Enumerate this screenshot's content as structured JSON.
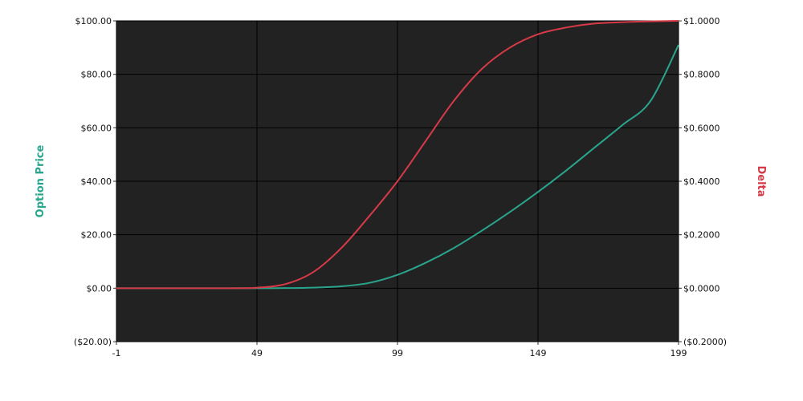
{
  "chart_data": {
    "type": "line",
    "grid": true,
    "legend": "none",
    "colors": {
      "plot_background": "#222222",
      "grid": "#000000",
      "option_price": "#2aa58d",
      "delta": "#d63a48"
    },
    "x": {
      "min": -1,
      "max": 199,
      "ticks": [
        "-1",
        "49",
        "99",
        "149",
        "199"
      ]
    },
    "y_left": {
      "label": "Option Price",
      "min": -20,
      "max": 100,
      "ticks": [
        "($20.00)",
        "$0.00",
        "$20.00",
        "$40.00",
        "$60.00",
        "$80.00",
        "$100.00"
      ]
    },
    "y_right": {
      "label": "Delta",
      "min": -0.2,
      "max": 1.0,
      "ticks": [
        "($0.2000)",
        "$0.0000",
        "$0.2000",
        "$0.4000",
        "$0.6000",
        "$0.8000",
        "$1.0000"
      ]
    },
    "series": [
      {
        "name": "Option Price",
        "axis": "left",
        "x": [
          -1,
          49,
          59,
          69,
          79,
          89,
          99,
          109,
          119,
          129,
          139,
          149,
          159,
          169,
          179,
          189,
          199
        ],
        "y": [
          0,
          0,
          0.05,
          0.2,
          0.7,
          2.0,
          5.0,
          9.5,
          15.0,
          21.5,
          28.5,
          36.0,
          44.0,
          52.5,
          61.0,
          70.0,
          91.0
        ]
      },
      {
        "name": "Delta",
        "axis": "right",
        "x": [
          -1,
          39,
          49,
          59,
          69,
          79,
          89,
          99,
          109,
          119,
          129,
          139,
          149,
          159,
          169,
          179,
          189,
          199
        ],
        "y": [
          0,
          0,
          0.002,
          0.015,
          0.06,
          0.15,
          0.27,
          0.4,
          0.55,
          0.7,
          0.82,
          0.9,
          0.95,
          0.975,
          0.99,
          0.995,
          0.998,
          1.0
        ]
      }
    ]
  }
}
